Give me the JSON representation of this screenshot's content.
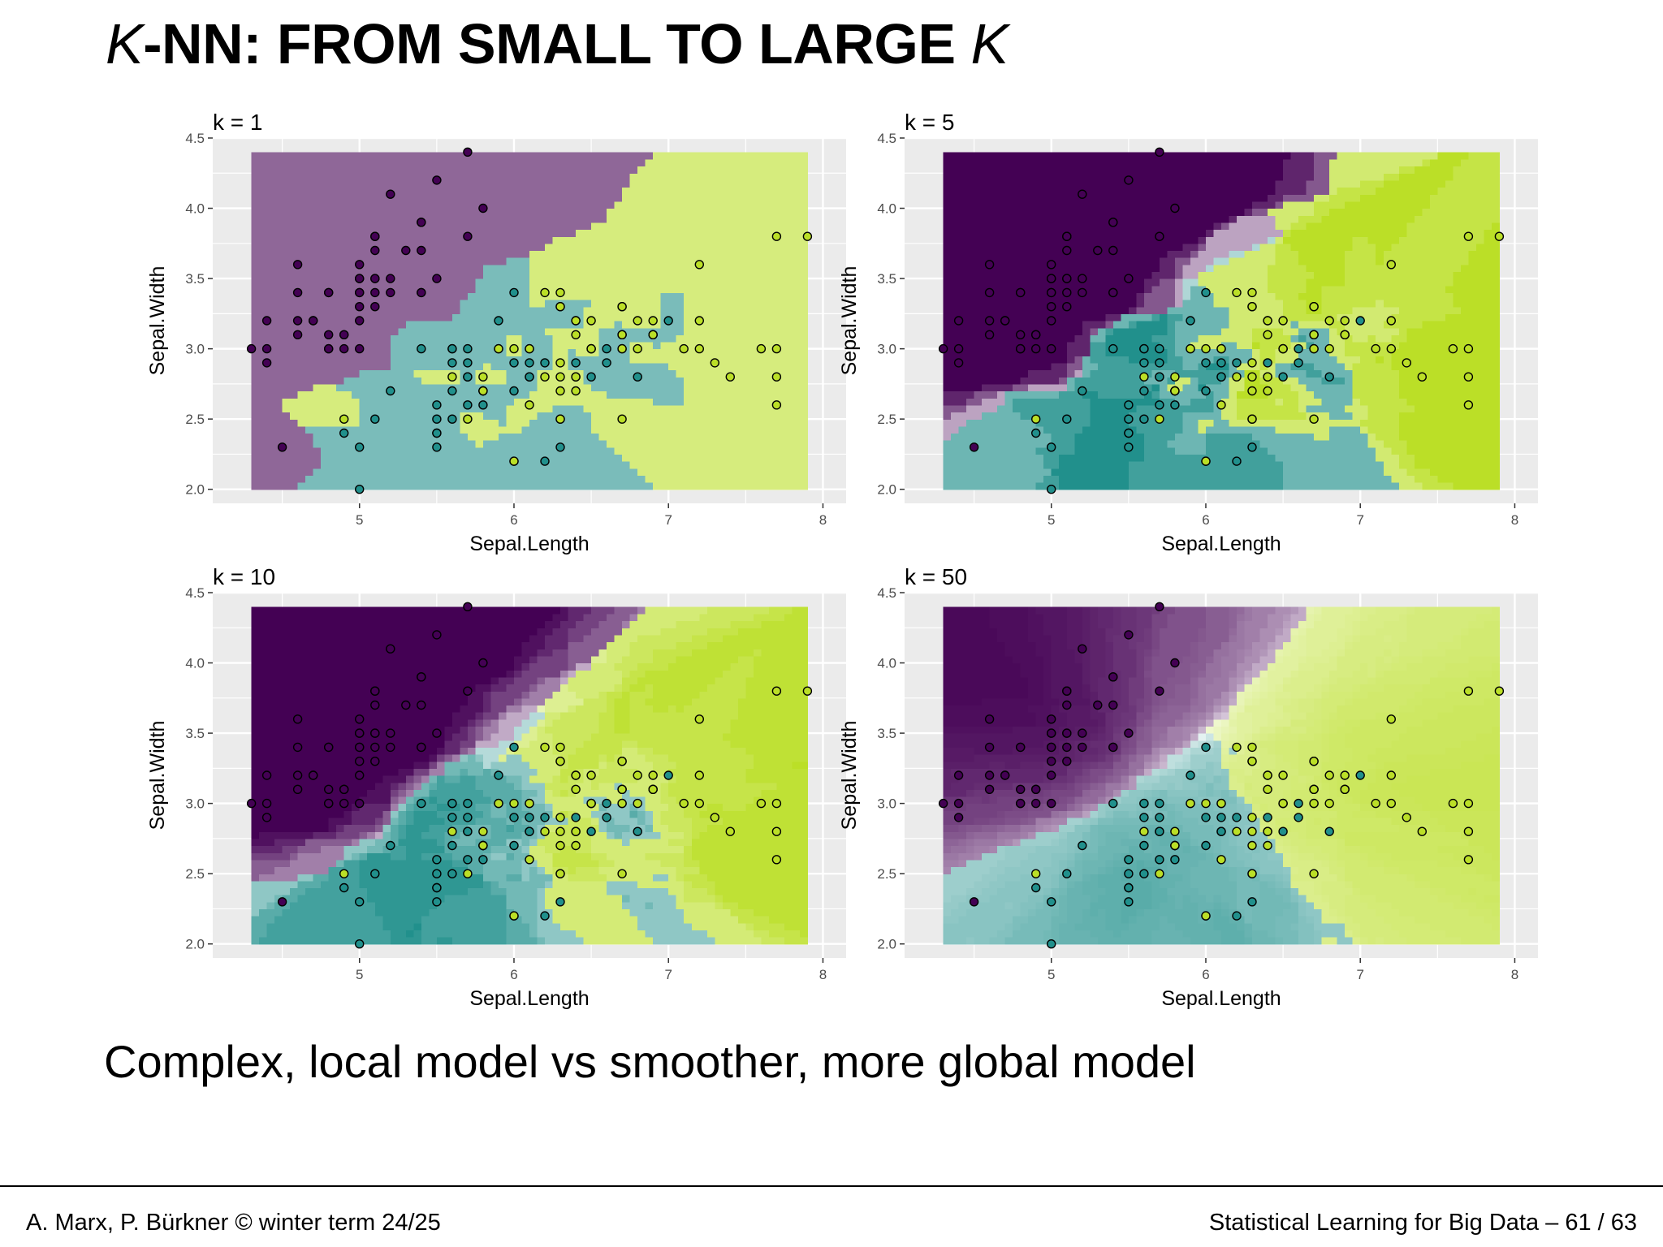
{
  "slide": {
    "title_prefix": "K",
    "title_middle": "-NN: FROM SMALL TO LARGE ",
    "title_suffix": "K",
    "subtitle": "Complex, local model vs smoother, more global model"
  },
  "footer": {
    "left": "A. Marx, P. Bürkner © winter term 24/25",
    "right": "Statistical Learning for Big Data – 61 / 63"
  },
  "colors": {
    "class_a": "#440154",
    "class_b": "#21908C",
    "class_c": "#BBDF27",
    "panel_bg": "#EBEBEB",
    "grid": "#FFFFFF"
  },
  "chart_data": [
    {
      "type": "scatter",
      "title": "k = 1",
      "k": 1,
      "xlabel": "Sepal.Length",
      "ylabel": "Sepal.Width",
      "xlim": [
        4.05,
        8.15
      ],
      "ylim": [
        1.9,
        4.5
      ],
      "xticks": [
        "5",
        "6",
        "7",
        "8"
      ],
      "yticks": [
        "2.0",
        "2.5",
        "3.0",
        "3.5",
        "4.0",
        "4.5"
      ],
      "grid": true,
      "background": "decision-region"
    },
    {
      "type": "scatter",
      "title": "k = 5",
      "k": 5,
      "xlabel": "Sepal.Length",
      "ylabel": "Sepal.Width",
      "xlim": [
        4.05,
        8.15
      ],
      "ylim": [
        1.9,
        4.5
      ],
      "xticks": [
        "5",
        "6",
        "7",
        "8"
      ],
      "yticks": [
        "2.0",
        "2.5",
        "3.0",
        "3.5",
        "4.0",
        "4.5"
      ],
      "grid": true,
      "background": "decision-region"
    },
    {
      "type": "scatter",
      "title": "k = 10",
      "k": 10,
      "xlabel": "Sepal.Length",
      "ylabel": "Sepal.Width",
      "xlim": [
        4.05,
        8.15
      ],
      "ylim": [
        1.9,
        4.5
      ],
      "xticks": [
        "5",
        "6",
        "7",
        "8"
      ],
      "yticks": [
        "2.0",
        "2.5",
        "3.0",
        "3.5",
        "4.0",
        "4.5"
      ],
      "grid": true,
      "background": "decision-region"
    },
    {
      "type": "scatter",
      "title": "k = 50",
      "k": 50,
      "xlabel": "Sepal.Length",
      "ylabel": "Sepal.Width",
      "xlim": [
        4.05,
        8.15
      ],
      "ylim": [
        1.9,
        4.5
      ],
      "xticks": [
        "5",
        "6",
        "7",
        "8"
      ],
      "yticks": [
        "2.0",
        "2.5",
        "3.0",
        "3.5",
        "4.0",
        "4.5"
      ],
      "grid": true,
      "background": "decision-region"
    }
  ],
  "points": {
    "class_a": [
      [
        5.1,
        3.5
      ],
      [
        4.9,
        3.0
      ],
      [
        4.7,
        3.2
      ],
      [
        4.6,
        3.1
      ],
      [
        5.0,
        3.6
      ],
      [
        5.4,
        3.9
      ],
      [
        4.6,
        3.4
      ],
      [
        5.0,
        3.4
      ],
      [
        4.4,
        2.9
      ],
      [
        4.9,
        3.1
      ],
      [
        5.4,
        3.7
      ],
      [
        4.8,
        3.4
      ],
      [
        4.8,
        3.0
      ],
      [
        4.3,
        3.0
      ],
      [
        5.8,
        4.0
      ],
      [
        5.7,
        4.4
      ],
      [
        5.4,
        3.9
      ],
      [
        5.1,
        3.5
      ],
      [
        5.7,
        3.8
      ],
      [
        5.1,
        3.8
      ],
      [
        5.4,
        3.4
      ],
      [
        5.1,
        3.7
      ],
      [
        4.6,
        3.6
      ],
      [
        5.1,
        3.3
      ],
      [
        4.8,
        3.4
      ],
      [
        5.0,
        3.0
      ],
      [
        5.0,
        3.4
      ],
      [
        5.2,
        3.5
      ],
      [
        5.2,
        3.4
      ],
      [
        4.7,
        3.2
      ],
      [
        4.8,
        3.1
      ],
      [
        5.4,
        3.4
      ],
      [
        5.2,
        4.1
      ],
      [
        5.5,
        4.2
      ],
      [
        4.9,
        3.1
      ],
      [
        5.0,
        3.2
      ],
      [
        5.5,
        3.5
      ],
      [
        4.4,
        3.0
      ],
      [
        5.1,
        3.4
      ],
      [
        5.0,
        3.5
      ],
      [
        4.5,
        2.3
      ],
      [
        4.4,
        3.2
      ],
      [
        5.0,
        3.5
      ],
      [
        5.1,
        3.8
      ],
      [
        4.8,
        3.0
      ],
      [
        4.6,
        3.2
      ],
      [
        5.3,
        3.7
      ],
      [
        5.0,
        3.3
      ]
    ],
    "class_b": [
      [
        7.0,
        3.2
      ],
      [
        6.4,
        3.2
      ],
      [
        6.9,
        3.1
      ],
      [
        5.5,
        2.3
      ],
      [
        6.5,
        2.8
      ],
      [
        5.7,
        2.8
      ],
      [
        6.3,
        3.3
      ],
      [
        4.9,
        2.4
      ],
      [
        6.6,
        2.9
      ],
      [
        5.2,
        2.7
      ],
      [
        5.0,
        2.0
      ],
      [
        5.9,
        3.0
      ],
      [
        6.0,
        2.2
      ],
      [
        6.1,
        2.9
      ],
      [
        5.6,
        2.9
      ],
      [
        6.7,
        3.1
      ],
      [
        5.6,
        3.0
      ],
      [
        5.8,
        2.7
      ],
      [
        6.2,
        2.2
      ],
      [
        5.6,
        2.5
      ],
      [
        5.9,
        3.2
      ],
      [
        6.1,
        2.8
      ],
      [
        6.3,
        2.5
      ],
      [
        6.1,
        2.8
      ],
      [
        6.4,
        2.9
      ],
      [
        6.6,
        3.0
      ],
      [
        6.8,
        2.8
      ],
      [
        6.7,
        3.0
      ],
      [
        6.0,
        2.9
      ],
      [
        5.7,
        2.6
      ],
      [
        5.5,
        2.4
      ],
      [
        5.5,
        2.4
      ],
      [
        5.8,
        2.7
      ],
      [
        6.0,
        2.7
      ],
      [
        5.4,
        3.0
      ],
      [
        6.0,
        3.4
      ],
      [
        6.7,
        3.1
      ],
      [
        6.3,
        2.3
      ],
      [
        5.6,
        3.0
      ],
      [
        5.5,
        2.5
      ],
      [
        5.5,
        2.6
      ],
      [
        6.1,
        3.0
      ],
      [
        5.8,
        2.6
      ],
      [
        5.0,
        2.3
      ],
      [
        5.6,
        2.7
      ],
      [
        5.7,
        3.0
      ],
      [
        5.7,
        2.9
      ],
      [
        6.2,
        2.9
      ],
      [
        5.1,
        2.5
      ],
      [
        5.7,
        2.8
      ]
    ],
    "class_c": [
      [
        6.3,
        3.3
      ],
      [
        5.8,
        2.7
      ],
      [
        7.1,
        3.0
      ],
      [
        6.3,
        2.9
      ],
      [
        6.5,
        3.0
      ],
      [
        7.6,
        3.0
      ],
      [
        4.9,
        2.5
      ],
      [
        7.3,
        2.9
      ],
      [
        6.7,
        2.5
      ],
      [
        7.2,
        3.6
      ],
      [
        6.5,
        3.2
      ],
      [
        6.4,
        2.7
      ],
      [
        6.8,
        3.0
      ],
      [
        5.7,
        2.5
      ],
      [
        5.8,
        2.8
      ],
      [
        6.4,
        3.2
      ],
      [
        6.5,
        3.0
      ],
      [
        7.7,
        3.8
      ],
      [
        7.7,
        2.6
      ],
      [
        6.0,
        2.2
      ],
      [
        6.9,
        3.2
      ],
      [
        5.6,
        2.8
      ],
      [
        7.7,
        2.8
      ],
      [
        6.3,
        2.7
      ],
      [
        6.7,
        3.3
      ],
      [
        7.2,
        3.2
      ],
      [
        6.2,
        2.8
      ],
      [
        6.1,
        3.0
      ],
      [
        6.4,
        2.8
      ],
      [
        7.2,
        3.0
      ],
      [
        7.4,
        2.8
      ],
      [
        7.9,
        3.8
      ],
      [
        6.4,
        2.8
      ],
      [
        6.3,
        2.8
      ],
      [
        6.1,
        2.6
      ],
      [
        7.7,
        3.0
      ],
      [
        6.3,
        3.4
      ],
      [
        6.4,
        3.1
      ],
      [
        6.0,
        3.0
      ],
      [
        6.9,
        3.1
      ],
      [
        6.7,
        3.1
      ],
      [
        6.9,
        3.1
      ],
      [
        5.8,
        2.7
      ],
      [
        6.8,
        3.2
      ],
      [
        6.7,
        3.3
      ],
      [
        6.7,
        3.0
      ],
      [
        6.3,
        2.5
      ],
      [
        6.5,
        3.0
      ],
      [
        6.2,
        3.4
      ],
      [
        5.9,
        3.0
      ]
    ]
  }
}
